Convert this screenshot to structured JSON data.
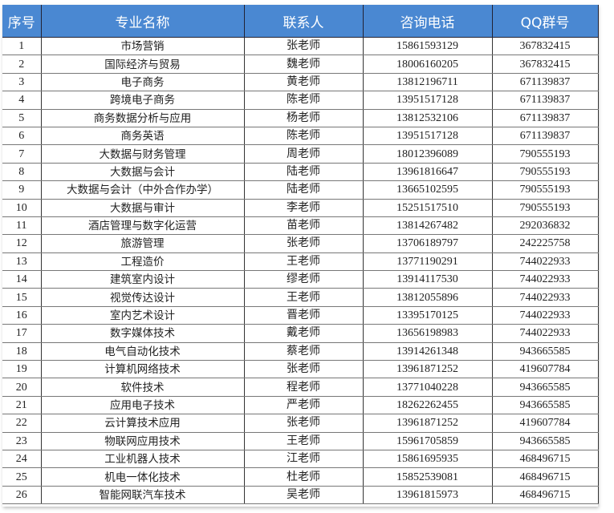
{
  "headers": [
    "序号",
    "专业名称",
    "联系人",
    "咨询电话",
    "QQ群号"
  ],
  "colors": {
    "header_bg": "#4a88d2",
    "header_text": "#ffffff"
  },
  "rows": [
    [
      "1",
      "市场营销",
      "张老师",
      "15861593129",
      "367832415"
    ],
    [
      "2",
      "国际经济与贸易",
      "魏老师",
      "18006160205",
      "367832415"
    ],
    [
      "3",
      "电子商务",
      "黄老师",
      "13812196711",
      "671139837"
    ],
    [
      "4",
      "跨境电子商务",
      "陈老师",
      "13951517128",
      "671139837"
    ],
    [
      "5",
      "商务数据分析与应用",
      "杨老师",
      "13812532106",
      "671139837"
    ],
    [
      "6",
      "商务英语",
      "陈老师",
      "13951517128",
      "671139837"
    ],
    [
      "7",
      "大数据与财务管理",
      "周老师",
      "18012396089",
      "790555193"
    ],
    [
      "8",
      "大数据与会计",
      "陆老师",
      "13961816647",
      "790555193"
    ],
    [
      "9",
      "大数据与会计（中外合作办学）",
      "陆老师",
      "13665102595",
      "790555193"
    ],
    [
      "10",
      "大数据与审计",
      "李老师",
      "15251517510",
      "790555193"
    ],
    [
      "11",
      "酒店管理与数字化运营",
      "苗老师",
      "13814267482",
      "292036832"
    ],
    [
      "12",
      "旅游管理",
      "张老师",
      "13706189797",
      "242225758"
    ],
    [
      "13",
      "工程造价",
      "王老师",
      "13771190291",
      "744022933"
    ],
    [
      "14",
      "建筑室内设计",
      "缪老师",
      "13914117530",
      "744022933"
    ],
    [
      "15",
      "视觉传达设计",
      "王老师",
      "13812055896",
      "744022933"
    ],
    [
      "16",
      "室内艺术设计",
      "晋老师",
      "13395170125",
      "744022933"
    ],
    [
      "17",
      "数字媒体技术",
      "戴老师",
      "13656198983",
      "744022933"
    ],
    [
      "18",
      "电气自动化技术",
      "蔡老师",
      "13914261348",
      "943665585"
    ],
    [
      "19",
      "计算机网络技术",
      "张老师",
      "13961871252",
      "419607784"
    ],
    [
      "20",
      "软件技术",
      "程老师",
      "13771040228",
      "943665585"
    ],
    [
      "21",
      "应用电子技术",
      "严老师",
      "18262262455",
      "943665585"
    ],
    [
      "22",
      "云计算技术应用",
      "张老师",
      "13961871252",
      "419607784"
    ],
    [
      "23",
      "物联网应用技术",
      "王老师",
      "15961705859",
      "943665585"
    ],
    [
      "24",
      "工业机器人技术",
      "江老师",
      "15861695935",
      "468496715"
    ],
    [
      "25",
      "机电一体化技术",
      "杜老师",
      "15852539081",
      "468496715"
    ],
    [
      "26",
      "智能网联汽车技术",
      "吴老师",
      "13961815973",
      "468496715"
    ]
  ]
}
